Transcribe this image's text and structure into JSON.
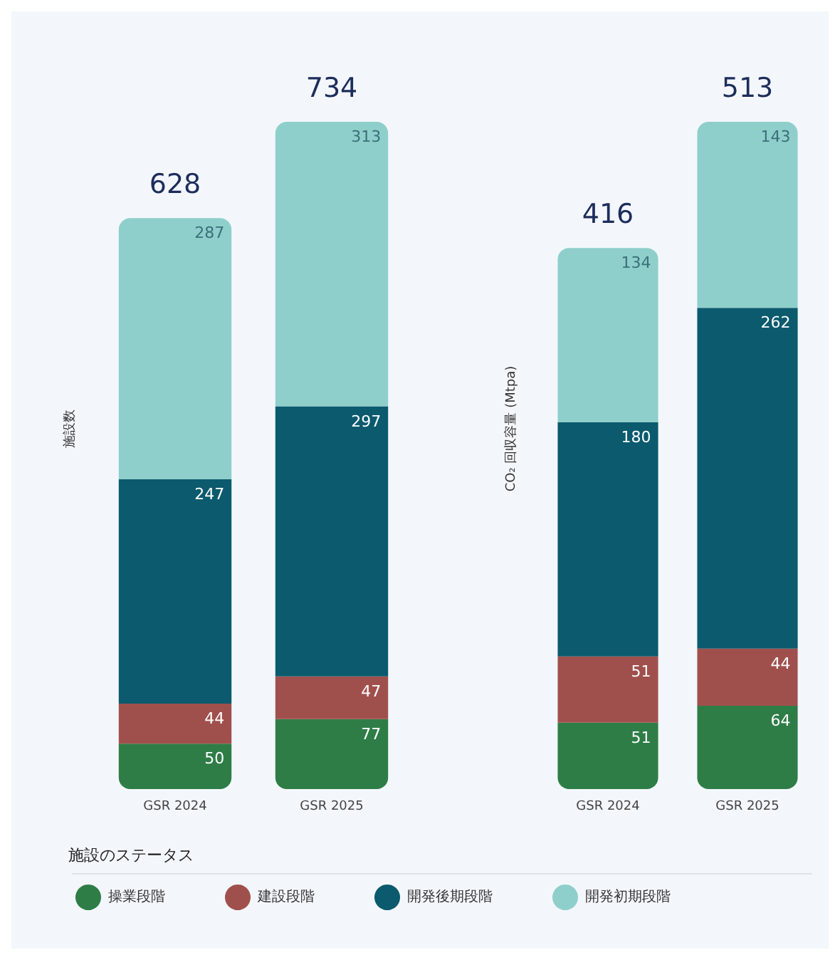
{
  "chart_data": [
    {
      "type": "bar",
      "stacked": true,
      "ylabel": "施設数",
      "categories": [
        "GSR 2024",
        "GSR 2025"
      ],
      "legend": "bottom",
      "legend_title": "施設のステータス",
      "data_labels": true,
      "totals": [
        "628",
        "734"
      ],
      "series": [
        {
          "name": "操業段階",
          "color": "#2e7d46",
          "values": [
            50,
            77
          ]
        },
        {
          "name": "建設段階",
          "color": "#a0504c",
          "values": [
            44,
            47
          ]
        },
        {
          "name": "開発後期段階",
          "color": "#0b5a6e",
          "values": [
            247,
            297
          ]
        },
        {
          "name": "開発初期段階",
          "color": "#8fcfcb",
          "values": [
            287,
            313
          ]
        }
      ]
    },
    {
      "type": "bar",
      "stacked": true,
      "ylabel": "CO₂ 回収容量 (Mtpa)",
      "categories": [
        "GSR 2024",
        "GSR 2025"
      ],
      "data_labels": true,
      "totals": [
        "416",
        "513"
      ],
      "series": [
        {
          "color": "#2e7d46",
          "values": [
            51,
            64
          ]
        },
        {
          "color": "#a0504c",
          "values": [
            51,
            44
          ]
        },
        {
          "color": "#0b5a6e",
          "values": [
            180,
            262
          ]
        },
        {
          "color": "#8fcfcb",
          "values": [
            134,
            143
          ]
        }
      ]
    }
  ]
}
